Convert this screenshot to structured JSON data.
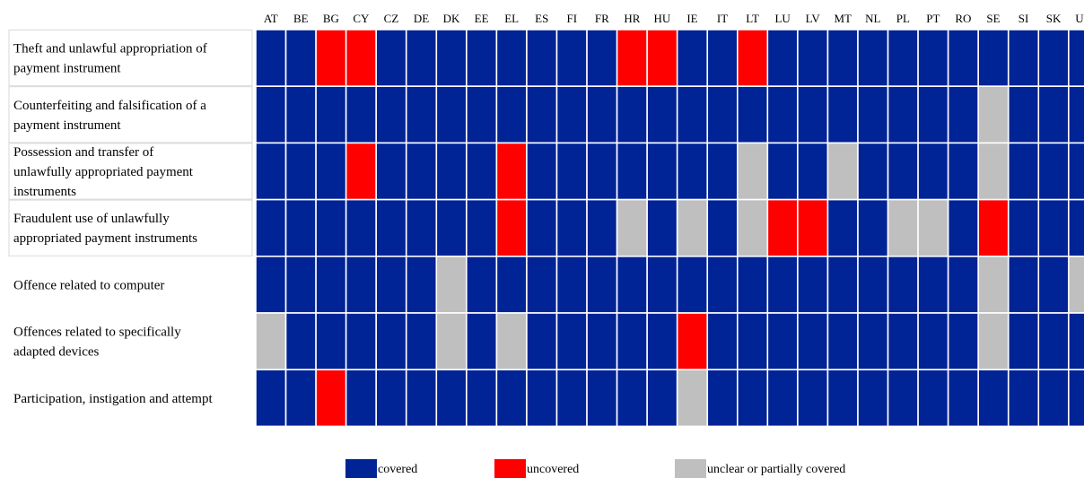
{
  "chart_data": {
    "type": "heatmap",
    "columns": [
      "AT",
      "BE",
      "BG",
      "CY",
      "CZ",
      "DE",
      "DK",
      "EE",
      "EL",
      "ES",
      "FI",
      "FR",
      "HR",
      "HU",
      "IE",
      "IT",
      "LT",
      "LU",
      "LV",
      "MT",
      "NL",
      "PL",
      "PT",
      "RO",
      "SE",
      "SI",
      "SK",
      "UK"
    ],
    "rows": [
      "Theft and unlawful appropriation of payment instrument",
      "Counterfeiting and falsification of a payment instrument",
      "Possession and transfer of unlawfully appropriated payment instruments",
      "Fraudulent use of unlawfully appropriated payment instruments",
      "Offence related to computer",
      "Offences related to specifically adapted devices",
      "Participation, instigation and attempt"
    ],
    "row_lines": [
      [
        "Theft and unlawful appropriation of",
        "payment instrument"
      ],
      [
        "Counterfeiting and falsification of a",
        "payment instrument"
      ],
      [
        "Possession and transfer of",
        "unlawfully appropriated payment",
        "instruments"
      ],
      [
        "Fraudulent use of unlawfully",
        "appropriated payment instruments"
      ],
      [
        "Offence related to computer"
      ],
      [
        "Offences related to specifically",
        "adapted devices"
      ],
      [
        "Participation, instigation and attempt"
      ]
    ],
    "row_boxed": [
      true,
      true,
      true,
      true,
      false,
      false,
      false
    ],
    "categories": [
      "covered",
      "uncovered",
      "unclear or partially covered"
    ],
    "colors": {
      "covered": "#002395",
      "uncovered": "#ff0000",
      "unclear or partially covered": "#bfbfbf"
    },
    "values": [
      [
        0,
        0,
        1,
        1,
        0,
        0,
        0,
        0,
        0,
        0,
        0,
        0,
        1,
        1,
        0,
        0,
        1,
        0,
        0,
        0,
        0,
        0,
        0,
        0,
        0,
        0,
        0,
        0
      ],
      [
        0,
        0,
        0,
        0,
        0,
        0,
        0,
        0,
        0,
        0,
        0,
        0,
        0,
        0,
        0,
        0,
        0,
        0,
        0,
        0,
        0,
        0,
        0,
        0,
        2,
        0,
        0,
        0
      ],
      [
        0,
        0,
        0,
        1,
        0,
        0,
        0,
        0,
        1,
        0,
        0,
        0,
        0,
        0,
        0,
        0,
        2,
        0,
        0,
        2,
        0,
        0,
        0,
        0,
        2,
        0,
        0,
        0
      ],
      [
        0,
        0,
        0,
        0,
        0,
        0,
        0,
        0,
        1,
        0,
        0,
        0,
        2,
        0,
        2,
        0,
        2,
        1,
        1,
        0,
        0,
        2,
        2,
        0,
        1,
        0,
        0,
        0
      ],
      [
        0,
        0,
        0,
        0,
        0,
        0,
        2,
        0,
        0,
        0,
        0,
        0,
        0,
        0,
        0,
        0,
        0,
        0,
        0,
        0,
        0,
        0,
        0,
        0,
        2,
        0,
        0,
        2
      ],
      [
        2,
        0,
        0,
        0,
        0,
        0,
        2,
        0,
        2,
        0,
        0,
        0,
        0,
        0,
        1,
        0,
        0,
        0,
        0,
        0,
        0,
        0,
        0,
        0,
        2,
        0,
        0,
        0
      ],
      [
        0,
        0,
        1,
        0,
        0,
        0,
        0,
        0,
        0,
        0,
        0,
        0,
        0,
        0,
        2,
        0,
        0,
        0,
        0,
        0,
        0,
        0,
        0,
        0,
        0,
        0,
        0,
        0
      ]
    ],
    "legend_position": "bottom"
  }
}
